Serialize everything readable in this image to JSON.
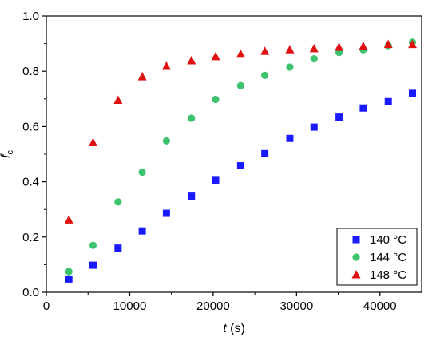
{
  "chart_data": {
    "type": "scatter",
    "xlabel_var": "t",
    "xlabel_unit": "(s)",
    "ylabel_var": "f",
    "ylabel_sub": "c",
    "xlim": [
      0,
      45000
    ],
    "ylim": [
      0,
      1.0
    ],
    "x_ticks": [
      0,
      10000,
      20000,
      30000,
      40000
    ],
    "x_tick_labels": [
      "0",
      "10000",
      "20000",
      "30000",
      "40000"
    ],
    "y_ticks": [
      0.0,
      0.2,
      0.4,
      0.6,
      0.8,
      1.0
    ],
    "y_tick_labels": [
      "0.0",
      "0.2",
      "0.4",
      "0.6",
      "0.8",
      "1.0"
    ],
    "grid": false,
    "legend_position": "bottom-right",
    "series": [
      {
        "name": "140 °C",
        "marker": "square",
        "color": "#1a1aff",
        "x": [
          2700,
          5600,
          8600,
          11500,
          14400,
          17400,
          20300,
          23300,
          26200,
          29200,
          32100,
          35100,
          38000,
          41000,
          43900
        ],
        "y": [
          0.048,
          0.098,
          0.16,
          0.222,
          0.286,
          0.348,
          0.405,
          0.458,
          0.502,
          0.557,
          0.598,
          0.634,
          0.667,
          0.69,
          0.72
        ]
      },
      {
        "name": "144 °C",
        "marker": "circle",
        "color": "#3cc36e",
        "x": [
          2700,
          5600,
          8600,
          11500,
          14400,
          17400,
          20300,
          23300,
          26200,
          29200,
          32100,
          35100,
          38000,
          41000,
          43900
        ],
        "y": [
          0.075,
          0.17,
          0.327,
          0.435,
          0.548,
          0.63,
          0.698,
          0.748,
          0.785,
          0.815,
          0.845,
          0.868,
          0.878,
          0.893,
          0.905
        ]
      },
      {
        "name": "148 °C",
        "marker": "triangle",
        "color": "#e01010",
        "x": [
          2700,
          5600,
          8600,
          11500,
          14400,
          17400,
          20300,
          23300,
          26200,
          29200,
          32100,
          35100,
          38000,
          41000,
          43900
        ],
        "y": [
          0.262,
          0.542,
          0.695,
          0.78,
          0.818,
          0.838,
          0.853,
          0.862,
          0.872,
          0.878,
          0.882,
          0.887,
          0.89,
          0.897,
          0.897
        ]
      }
    ]
  }
}
